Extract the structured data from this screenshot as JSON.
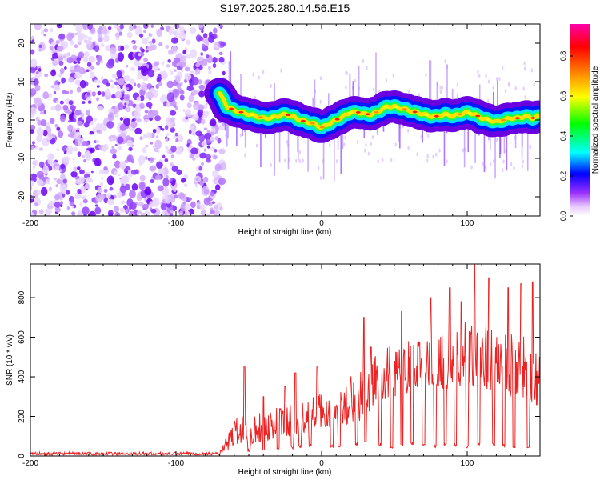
{
  "figure": {
    "title": "S197.2025.280.14.56.E15"
  },
  "chart_data": [
    {
      "type": "heatmap",
      "name": "spectrogram",
      "xlabel": "Height of straight line (km)",
      "ylabel": "Frequency (Hz)",
      "xlim": [
        -200,
        150
      ],
      "ylim": [
        -25,
        25
      ],
      "xticks": [
        -200,
        -100,
        0,
        100
      ],
      "yticks": [
        -20,
        -10,
        0,
        10,
        20
      ],
      "noise_region_x": [
        -200,
        -67
      ],
      "signal_start_x": -67,
      "ridge_x": [
        -70,
        -65,
        -60,
        -55,
        -50,
        -45,
        -40,
        -35,
        -30,
        -25,
        -20,
        -15,
        -10,
        -5,
        0,
        5,
        10,
        15,
        20,
        25,
        30,
        35,
        40,
        45,
        50,
        55,
        60,
        65,
        70,
        75,
        80,
        85,
        90,
        95,
        100,
        105,
        110,
        115,
        120,
        125,
        130,
        135,
        140,
        145,
        150
      ],
      "ridge_freq": [
        7,
        3.5,
        2.5,
        2.0,
        1.5,
        1.0,
        0.5,
        0.5,
        1.0,
        1.5,
        1.0,
        0.0,
        -0.5,
        -1.0,
        -2.0,
        -1.0,
        0.0,
        1.0,
        2.0,
        2.0,
        1.5,
        1.5,
        2.5,
        3.5,
        3.5,
        3.0,
        2.5,
        2.0,
        1.5,
        1.0,
        1.0,
        1.5,
        1.0,
        1.5,
        2.0,
        1.5,
        0.5,
        0.0,
        -0.5,
        0.0,
        0.5,
        0.5,
        1.0,
        0.5,
        1.0
      ],
      "colorbar": {
        "label": "Normalized spectral amplitude",
        "ticks": [
          "0.0",
          "0.2",
          "0.4",
          "0.6",
          "0.8"
        ],
        "range": [
          0,
          0.96
        ],
        "colors": [
          "#ffffff",
          "#d8b0ff",
          "#8a2be2",
          "#0000ff",
          "#00ffff",
          "#00ff00",
          "#ffff00",
          "#ff8000",
          "#ff0000",
          "#ff00aa"
        ]
      }
    },
    {
      "type": "line",
      "name": "snr",
      "xlabel": "Height of straight line (km)",
      "ylabel": "SNR (10 * v/v)",
      "xlim": [
        -200,
        150
      ],
      "ylim": [
        0,
        970
      ],
      "xticks": [
        -200,
        -100,
        0,
        100
      ],
      "yticks": [
        0,
        200,
        400,
        600,
        800
      ],
      "series_color": "#ee2222",
      "envelope_x": [
        -200,
        -70,
        -62,
        -58,
        -50,
        -40,
        -30,
        -20,
        -10,
        0,
        10,
        20,
        25,
        30,
        40,
        50,
        60,
        70,
        80,
        90,
        100,
        110,
        120,
        130,
        140,
        150
      ],
      "envelope_upper": [
        20,
        20,
        150,
        220,
        200,
        230,
        260,
        280,
        300,
        320,
        330,
        380,
        420,
        480,
        550,
        560,
        600,
        620,
        650,
        600,
        700,
        680,
        650,
        640,
        600,
        520
      ],
      "envelope_lower": [
        5,
        5,
        40,
        60,
        60,
        70,
        90,
        100,
        120,
        140,
        150,
        160,
        170,
        200,
        280,
        300,
        320,
        330,
        350,
        320,
        360,
        350,
        320,
        300,
        280,
        250
      ],
      "dips_x": [
        -50,
        -40,
        -30,
        -20,
        -15,
        -8,
        7,
        12,
        24,
        30,
        40,
        48,
        55,
        62,
        70,
        78,
        85,
        92,
        100,
        108,
        118,
        125,
        132,
        142
      ],
      "dips_y": [
        20,
        25,
        30,
        35,
        40,
        45,
        40,
        40,
        50,
        60,
        50,
        40,
        45,
        55,
        50,
        40,
        50,
        45,
        40,
        55,
        50,
        45,
        40,
        35
      ],
      "spikes_x": [
        -53,
        -40,
        -25,
        -18,
        -3,
        20,
        29,
        34,
        55,
        75,
        88,
        96,
        105,
        115,
        128,
        137,
        145
      ],
      "spikes_y": [
        450,
        300,
        350,
        420,
        450,
        400,
        700,
        550,
        730,
        800,
        850,
        780,
        970,
        900,
        850,
        870,
        880
      ]
    }
  ]
}
